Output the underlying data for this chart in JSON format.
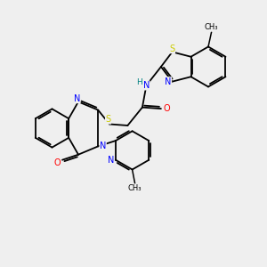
{
  "bg_color": "#efefef",
  "atom_colors": {
    "C": "#000000",
    "N": "#0000ff",
    "O": "#ff0000",
    "S": "#cccc00",
    "H": "#008080"
  },
  "bond_color": "#000000"
}
